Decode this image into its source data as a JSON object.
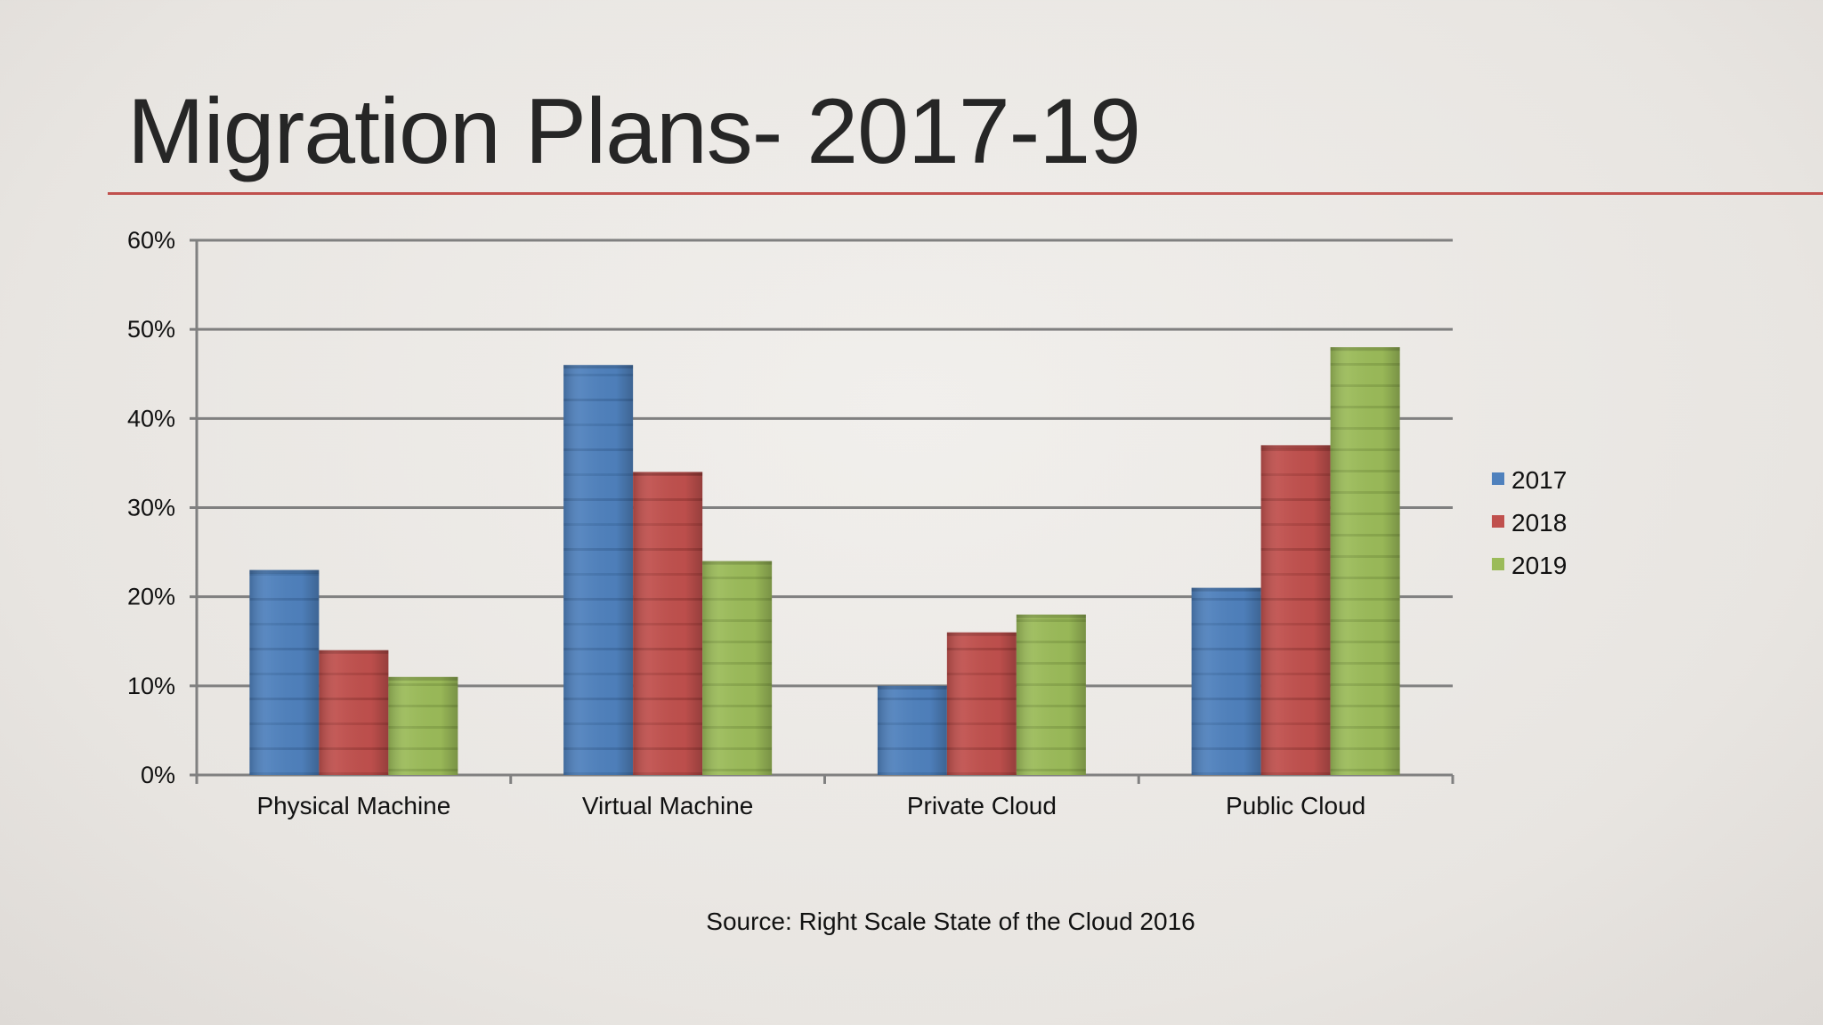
{
  "slide": {
    "title": "Migration Plans- 2017-19",
    "source": "Source: Right Scale State of the Cloud 2016"
  },
  "colors": {
    "title_rule": "#c0504d",
    "grid": "#808080",
    "series": [
      "#4f81bd",
      "#c0504d",
      "#9bbb59"
    ]
  },
  "chart_data": {
    "type": "bar",
    "title": "",
    "xlabel": "",
    "ylabel": "",
    "categories": [
      "Physical Machine",
      "Virtual Machine",
      "Private Cloud",
      "Public Cloud"
    ],
    "series": [
      {
        "name": "2017",
        "values": [
          23,
          46,
          10,
          21
        ]
      },
      {
        "name": "2018",
        "values": [
          14,
          34,
          16,
          37
        ]
      },
      {
        "name": "2019",
        "values": [
          11,
          24,
          18,
          48
        ]
      }
    ],
    "ylim": [
      0,
      60
    ],
    "yticks": [
      0,
      10,
      20,
      30,
      40,
      50,
      60
    ],
    "ytick_labels": [
      "0%",
      "10%",
      "20%",
      "30%",
      "40%",
      "50%",
      "60%"
    ],
    "grid": true,
    "legend_position": "right"
  }
}
